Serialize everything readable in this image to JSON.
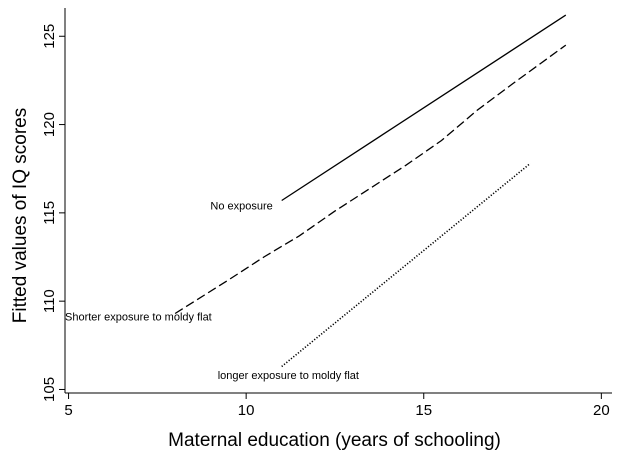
{
  "chart_data": {
    "type": "line",
    "title": "",
    "xlabel": "Maternal education (years of schooling)",
    "ylabel": "Fitted values of IQ scores",
    "xlim": [
      4.9,
      20.3
    ],
    "ylim": [
      104.8,
      126.6
    ],
    "xticks": [
      5,
      10,
      15,
      20
    ],
    "yticks": [
      105,
      110,
      115,
      120,
      125
    ],
    "grid": false,
    "legend": "none",
    "series": [
      {
        "style": "solid",
        "color": "#000000",
        "x": [
          11,
          19
        ],
        "y": [
          115.7,
          126.2
        ]
      },
      {
        "style": "dashed",
        "color": "#000000",
        "x": [
          8,
          9.5,
          10.5,
          11.5,
          12.5,
          13.5,
          14.5,
          15.5,
          16.5,
          17.5,
          19
        ],
        "y": [
          109.3,
          111.2,
          112.5,
          113.7,
          115.1,
          116.4,
          117.7,
          119.1,
          120.8,
          122.3,
          124.5
        ]
      },
      {
        "style": "dotted",
        "color": "#000000",
        "x": [
          11,
          18
        ],
        "y": [
          106.3,
          117.8
        ]
      }
    ],
    "annotations": [
      {
        "text": "No exposure",
        "x": 10.75,
        "y": 115.2,
        "anchor": "end"
      },
      {
        "text": "Shorter exposure to moldy flat",
        "x": 4.9,
        "y": 108.9,
        "anchor": "start"
      },
      {
        "text": "longer exposure to moldy flat",
        "x": 9.2,
        "y": 105.6,
        "anchor": "start"
      }
    ]
  }
}
